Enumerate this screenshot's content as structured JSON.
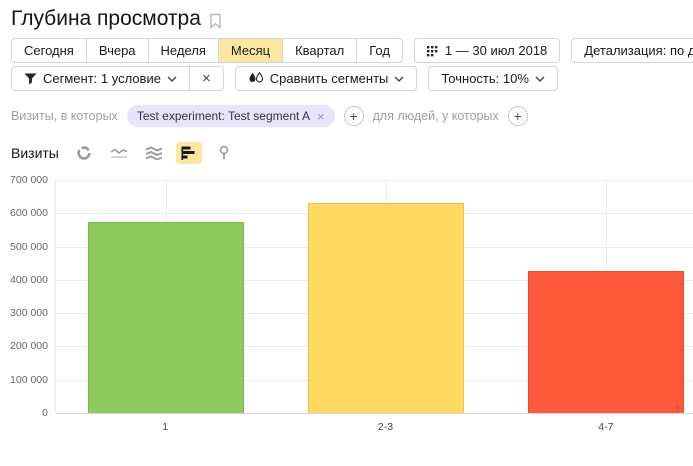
{
  "header": {
    "title": "Глубина просмотра"
  },
  "toolbar": {
    "periods": [
      "Сегодня",
      "Вчера",
      "Неделя",
      "Месяц",
      "Квартал",
      "Год"
    ],
    "selected_period": "Месяц",
    "date_range": "1 — 30 июл 2018",
    "detalization": "Детализация: по дням"
  },
  "segment_bar": {
    "segment_button": "Сегмент: 1 условие",
    "segment_remove": "×",
    "compare_button": "Сравнить сегменты",
    "accuracy_button": "Точность: 10%"
  },
  "filter_bar": {
    "visits_prefix": "Визиты, в которых",
    "segment_chip": "Test experiment: Test segment A",
    "chip_close": "×",
    "add_symbol": "+",
    "people_prefix": "для людей, у которых"
  },
  "metric_bar": {
    "label": "Визиты",
    "chart_types": [
      "pie",
      "line",
      "stacked-area",
      "bar",
      "map-pin"
    ],
    "selected_chart_type": "bar"
  },
  "colors": {
    "selected_yellow": "#fbe7a1",
    "chip_lavender": "#e7e5fb",
    "bar_green": "#8fca5d",
    "bar_yellow": "#ffd960",
    "bar_red": "#ff5a3c"
  },
  "chart_data": {
    "type": "bar",
    "title": "",
    "xlabel": "",
    "ylabel": "",
    "categories": [
      "1",
      "2-3",
      "4-7"
    ],
    "values": [
      575000,
      630000,
      426000
    ],
    "bar_colors": [
      "#8fca5d",
      "#ffd960",
      "#ff5a3c"
    ],
    "ylim": [
      0,
      700000
    ],
    "ytick_step": 100000,
    "grid": true,
    "legend": "none"
  }
}
